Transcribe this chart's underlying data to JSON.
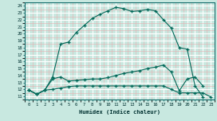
{
  "xlabel": "Humidex (Indice chaleur)",
  "background_color": "#c8e8e0",
  "grid_color_major": "#ffffff",
  "grid_color_minor": "#e8b0b0",
  "line_color": "#006858",
  "xlim": [
    0,
    23
  ],
  "ylim": [
    11,
    24
  ],
  "xtick_vals": [
    0,
    1,
    2,
    3,
    4,
    5,
    6,
    7,
    8,
    9,
    10,
    11,
    12,
    13,
    14,
    15,
    16,
    17,
    18,
    19,
    20,
    21,
    22,
    23
  ],
  "ytick_vals": [
    11,
    12,
    13,
    14,
    15,
    16,
    17,
    18,
    19,
    20,
    21,
    22,
    23,
    24
  ],
  "line1_x": [
    0,
    1,
    2,
    3,
    4,
    5,
    6,
    7,
    8,
    9,
    10,
    11,
    12,
    13,
    14,
    15,
    16,
    17,
    18,
    19,
    20,
    21,
    22
  ],
  "line1_y": [
    11.9,
    11.3,
    11.9,
    13.8,
    18.5,
    18.8,
    20.2,
    21.2,
    22.2,
    22.8,
    23.3,
    23.8,
    23.6,
    23.2,
    23.3,
    23.5,
    23.3,
    22.0,
    20.8,
    18.0,
    17.8,
    12.5,
    10.9
  ],
  "line2_x": [
    0,
    1,
    2,
    3,
    4,
    5,
    6,
    7,
    8,
    9,
    10,
    11,
    12,
    13,
    14,
    15,
    16,
    17,
    18,
    19,
    20,
    21,
    22
  ],
  "line2_y": [
    11.9,
    11.3,
    11.9,
    13.5,
    13.8,
    13.2,
    13.3,
    13.4,
    13.5,
    13.5,
    13.7,
    14.0,
    14.3,
    14.5,
    14.7,
    15.0,
    15.2,
    15.5,
    14.5,
    11.8,
    13.5,
    13.8,
    12.5
  ],
  "line3_x": [
    0,
    1,
    2,
    3,
    4,
    5,
    6,
    7,
    8,
    9,
    10,
    11,
    12,
    13,
    14,
    15,
    16,
    17,
    18,
    19,
    20,
    21,
    22,
    23
  ],
  "line3_y": [
    11.9,
    11.3,
    11.9,
    12.0,
    12.2,
    12.4,
    12.5,
    12.5,
    12.5,
    12.5,
    12.5,
    12.5,
    12.5,
    12.5,
    12.5,
    12.5,
    12.5,
    12.5,
    12.0,
    11.5,
    11.5,
    11.5,
    11.5,
    10.9
  ]
}
